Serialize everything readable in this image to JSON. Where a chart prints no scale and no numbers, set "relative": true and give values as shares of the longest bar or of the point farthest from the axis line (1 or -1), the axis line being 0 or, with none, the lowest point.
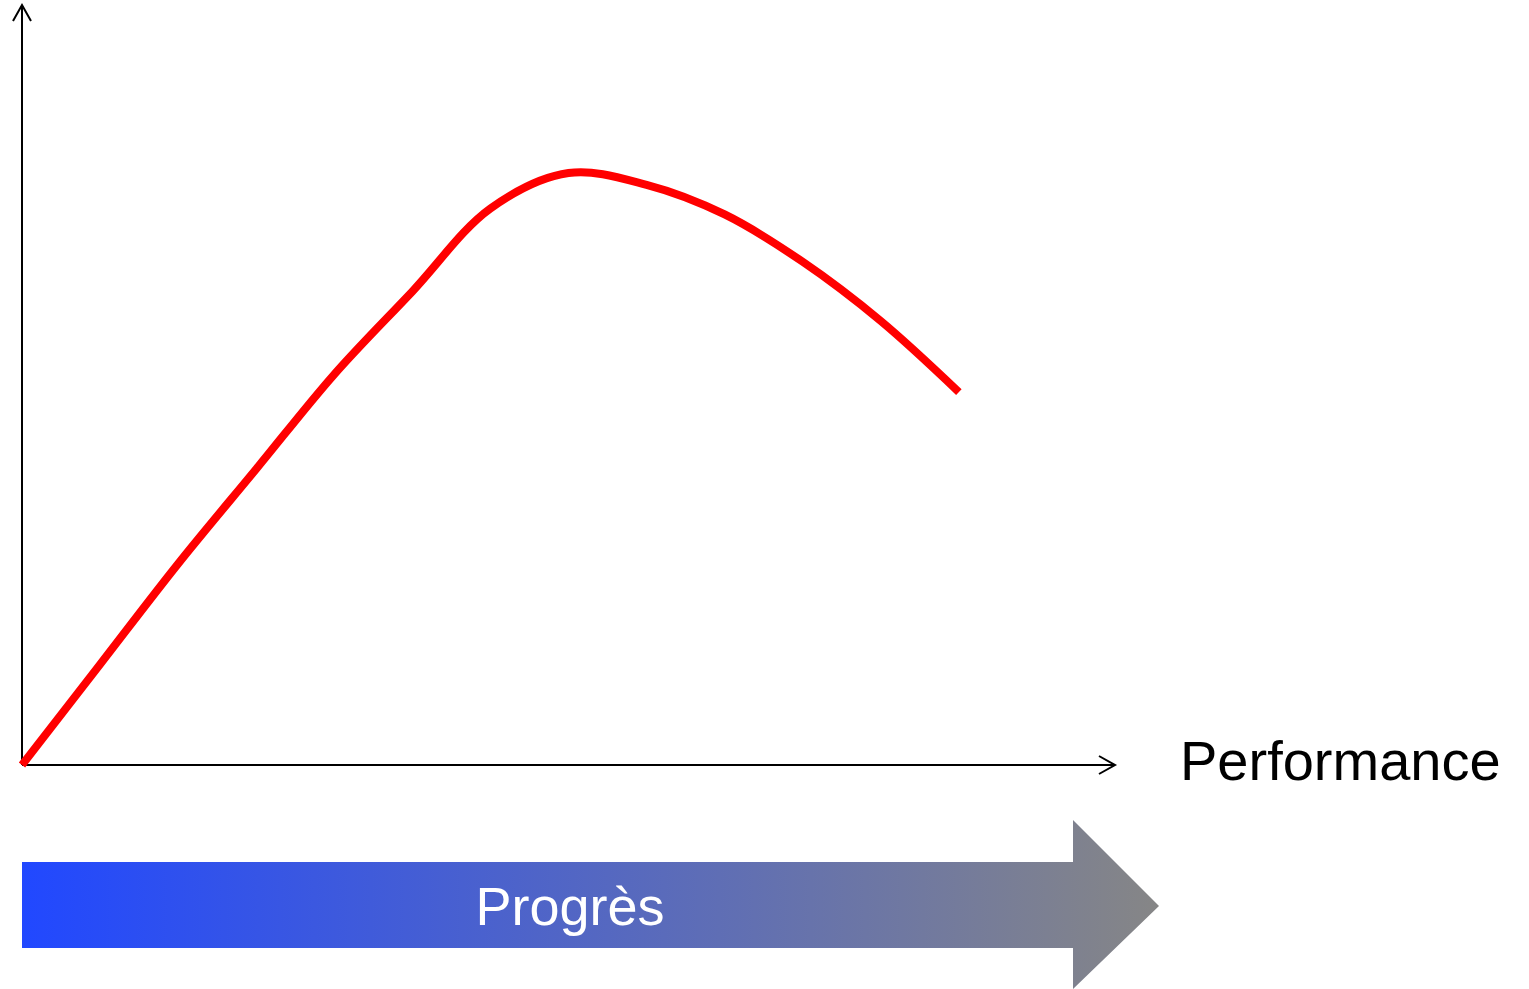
{
  "chart_data": {
    "type": "line",
    "relative": true,
    "xlabel": "Performance",
    "categories": [
      null,
      null,
      null,
      null,
      null,
      null,
      null,
      null,
      null,
      null,
      null,
      null,
      null,
      null,
      null
    ],
    "series": [
      {
        "color": "#ff0000",
        "values": [
          0,
          0.17,
          0.34,
          0.5,
          0.66,
          0.8,
          0.94,
          1,
          0.98,
          0.93,
          0.85,
          0.75,
          0.63,
          null,
          null
        ]
      }
    ],
    "annotations": [
      "Progrès"
    ]
  }
}
